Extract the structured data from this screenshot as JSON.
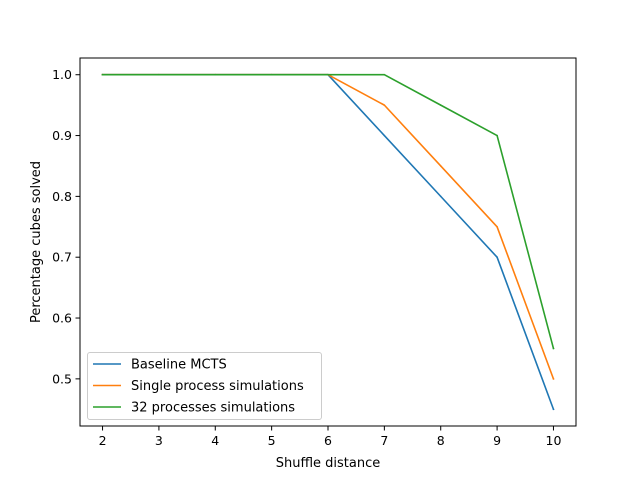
{
  "chart_data": {
    "type": "line",
    "title": "",
    "xlabel": "Shuffle distance",
    "ylabel": "Percentage cubes solved",
    "x": [
      2,
      3,
      4,
      5,
      6,
      7,
      8,
      9,
      10
    ],
    "xlim": [
      1.6,
      10.4
    ],
    "ylim": [
      0.4225,
      1.0275
    ],
    "xticks": [
      "2",
      "3",
      "4",
      "5",
      "6",
      "7",
      "8",
      "9",
      "10"
    ],
    "yticks": [
      "0.5",
      "0.6",
      "0.7",
      "0.8",
      "0.9",
      "1.0"
    ],
    "grid": false,
    "legend_position": "lower-left",
    "series": [
      {
        "name": "Baseline MCTS",
        "color": "#1f77b4",
        "values": [
          1.0,
          1.0,
          1.0,
          1.0,
          1.0,
          0.9,
          0.8,
          0.7,
          0.45
        ]
      },
      {
        "name": "Single process simulations",
        "color": "#ff7f0e",
        "values": [
          1.0,
          1.0,
          1.0,
          1.0,
          1.0,
          0.95,
          0.85,
          0.75,
          0.5
        ]
      },
      {
        "name": "32 processes simulations",
        "color": "#2ca02c",
        "values": [
          1.0,
          1.0,
          1.0,
          1.0,
          1.0,
          1.0,
          0.95,
          0.9,
          0.55
        ]
      }
    ]
  }
}
